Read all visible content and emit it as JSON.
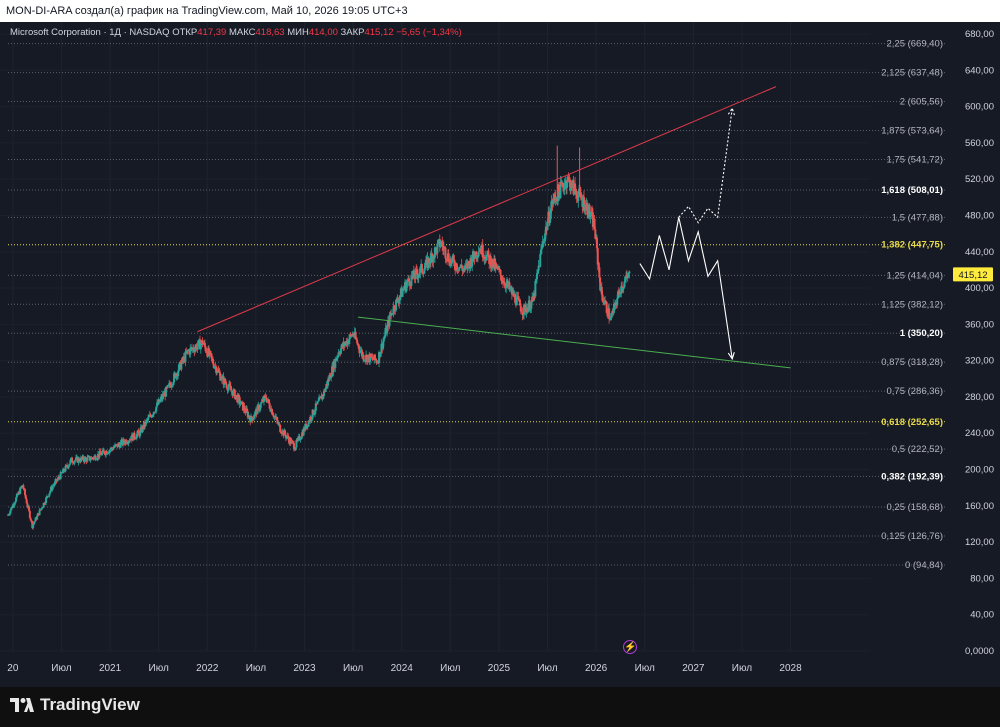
{
  "header": {
    "attribution": "MON-DI-ARA создал(а) график на TradingView.com, Май 10, 2026 19:05 UTC+3"
  },
  "legend": {
    "symbol": "Microsoft Corporation · 1Д · NASDAQ",
    "open_label": "ОТКР",
    "open_value": "417,39",
    "high_label": "МАКС",
    "high_value": "418,63",
    "low_label": "МИН",
    "low_value": "414,00",
    "close_label": "ЗАКР",
    "close_value": "415,12",
    "change": "−5,65 (−1,34%)"
  },
  "footer": {
    "brand": "TradingView"
  },
  "colors": {
    "background": "#161a25",
    "candle_up": "#26a69a",
    "candle_down": "#ef5350",
    "upper_trendline": "#e03a4a",
    "lower_trendline": "#4caf50",
    "fib_key": "#e6d84a",
    "projection": "#ffffff",
    "last_price_badge": "#ffeb3b"
  },
  "chart_data": {
    "type": "candlestick",
    "symbol": "Microsoft Corporation",
    "interval": "1Д",
    "exchange": "NASDAQ",
    "y_axis": {
      "min": 0,
      "max": 680,
      "ticks": [
        0,
        40,
        80,
        120,
        160,
        200,
        240,
        280,
        320,
        360,
        400,
        440,
        480,
        520,
        560,
        600,
        640,
        680
      ],
      "tick_labels": [
        "0,0000",
        "40,00",
        "80,00",
        "120,00",
        "160,00",
        "200,00",
        "240,00",
        "280,00",
        "320,00",
        "360,00",
        "400,00",
        "440,00",
        "480,00",
        "520,00",
        "560,00",
        "600,00",
        "640,00",
        "680,00"
      ]
    },
    "x_axis": {
      "labels": [
        {
          "t": 2020.0,
          "text": "20"
        },
        {
          "t": 2020.5,
          "text": "Июл"
        },
        {
          "t": 2021.0,
          "text": "2021"
        },
        {
          "t": 2021.5,
          "text": "Июл"
        },
        {
          "t": 2022.0,
          "text": "2022"
        },
        {
          "t": 2022.5,
          "text": "Июл"
        },
        {
          "t": 2023.0,
          "text": "2023"
        },
        {
          "t": 2023.5,
          "text": "Июл"
        },
        {
          "t": 2024.0,
          "text": "2024"
        },
        {
          "t": 2024.5,
          "text": "Июл"
        },
        {
          "t": 2025.0,
          "text": "2025"
        },
        {
          "t": 2025.5,
          "text": "Июл"
        },
        {
          "t": 2026.0,
          "text": "2026"
        },
        {
          "t": 2026.5,
          "text": "Июл"
        },
        {
          "t": 2027.0,
          "text": "2027"
        },
        {
          "t": 2027.5,
          "text": "Июл"
        },
        {
          "t": 2028.0,
          "text": "2028"
        }
      ]
    },
    "price_path": [
      [
        2019.95,
        150
      ],
      [
        2020.1,
        183
      ],
      [
        2020.2,
        138
      ],
      [
        2020.4,
        180
      ],
      [
        2020.6,
        210
      ],
      [
        2020.8,
        212
      ],
      [
        2021.0,
        222
      ],
      [
        2021.3,
        240
      ],
      [
        2021.6,
        290
      ],
      [
        2021.8,
        330
      ],
      [
        2021.95,
        340
      ],
      [
        2022.15,
        300
      ],
      [
        2022.3,
        280
      ],
      [
        2022.45,
        255
      ],
      [
        2022.6,
        280
      ],
      [
        2022.75,
        245
      ],
      [
        2022.9,
        225
      ],
      [
        2023.0,
        245
      ],
      [
        2023.2,
        285
      ],
      [
        2023.35,
        330
      ],
      [
        2023.5,
        350
      ],
      [
        2023.6,
        325
      ],
      [
        2023.75,
        320
      ],
      [
        2023.9,
        375
      ],
      [
        2024.05,
        405
      ],
      [
        2024.25,
        425
      ],
      [
        2024.4,
        450
      ],
      [
        2024.5,
        430
      ],
      [
        2024.65,
        420
      ],
      [
        2024.8,
        445
      ],
      [
        2024.95,
        425
      ],
      [
        2025.1,
        400
      ],
      [
        2025.25,
        375
      ],
      [
        2025.35,
        385
      ],
      [
        2025.45,
        450
      ],
      [
        2025.55,
        495
      ],
      [
        2025.7,
        520
      ],
      [
        2025.8,
        505
      ],
      [
        2025.9,
        490
      ],
      [
        2025.98,
        470
      ],
      [
        2026.05,
        395
      ],
      [
        2026.15,
        365
      ],
      [
        2026.25,
        400
      ],
      [
        2026.35,
        415.12
      ]
    ],
    "wick_spikes": [
      [
        2025.6,
        557
      ],
      [
        2025.83,
        555
      ]
    ],
    "last_price": {
      "value": 415.12,
      "label": "415,12"
    },
    "fibonacci": [
      {
        "ratio": "2,25",
        "price": 669.4,
        "label": "2,25 (669,40)",
        "key": false
      },
      {
        "ratio": "2,125",
        "price": 637.48,
        "label": "2,125 (637,48)",
        "key": false
      },
      {
        "ratio": "2",
        "price": 605.56,
        "label": "2 (605,56)",
        "key": false
      },
      {
        "ratio": "1,875",
        "price": 573.64,
        "label": "1,875 (573,64)",
        "key": false
      },
      {
        "ratio": "1,75",
        "price": 541.72,
        "label": "1,75 (541,72)",
        "key": false
      },
      {
        "ratio": "1,618",
        "price": 508.01,
        "label": "1,618 (508,01)",
        "key": "white"
      },
      {
        "ratio": "1,5",
        "price": 477.88,
        "label": "1,5 (477,88)",
        "key": false
      },
      {
        "ratio": "1,382",
        "price": 447.75,
        "label": "1,382 (447,75)",
        "key": "yellow"
      },
      {
        "ratio": "1,25",
        "price": 414.04,
        "label": "1,25 (414,04)",
        "key": false
      },
      {
        "ratio": "1,125",
        "price": 382.12,
        "label": "1,125 (382,12)",
        "key": false
      },
      {
        "ratio": "1",
        "price": 350.2,
        "label": "1 (350,20)",
        "key": "white"
      },
      {
        "ratio": "0,875",
        "price": 318.28,
        "label": "0,875 (318,28)",
        "key": false
      },
      {
        "ratio": "0,75",
        "price": 286.36,
        "label": "0,75 (286,36)",
        "key": false
      },
      {
        "ratio": "0,618",
        "price": 252.65,
        "label": "0,618 (252,65)",
        "key": "yellow"
      },
      {
        "ratio": "0,5",
        "price": 222.52,
        "label": "0,5 (222,52)",
        "key": false
      },
      {
        "ratio": "0,382",
        "price": 192.39,
        "label": "0,382 (192,39)",
        "key": "white"
      },
      {
        "ratio": "0,25",
        "price": 158.68,
        "label": "0,25 (158,68)",
        "key": false
      },
      {
        "ratio": "0,125",
        "price": 126.76,
        "label": "0,125 (126,76)",
        "key": false
      },
      {
        "ratio": "0",
        "price": 94.84,
        "label": "0 (94,84)",
        "key": false
      }
    ],
    "trendlines": [
      {
        "name": "upper",
        "from": [
          2021.9,
          352
        ],
        "to": [
          2027.85,
          622
        ]
      },
      {
        "name": "lower",
        "from": [
          2023.55,
          368
        ],
        "to": [
          2028.0,
          312
        ]
      }
    ],
    "projection_main": [
      [
        2026.45,
        427
      ],
      [
        2026.55,
        410
      ],
      [
        2026.65,
        458
      ],
      [
        2026.75,
        420
      ],
      [
        2026.85,
        478
      ],
      [
        2026.95,
        430
      ],
      [
        2027.05,
        462
      ],
      [
        2027.15,
        413
      ],
      [
        2027.25,
        430
      ],
      [
        2027.4,
        322
      ]
    ],
    "projection_alt": [
      [
        2026.85,
        478
      ],
      [
        2026.95,
        490
      ],
      [
        2027.05,
        472
      ],
      [
        2027.15,
        488
      ],
      [
        2027.25,
        478
      ],
      [
        2027.4,
        598
      ]
    ]
  }
}
